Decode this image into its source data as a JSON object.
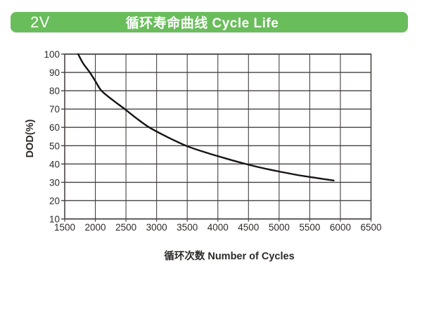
{
  "header": {
    "badge": "2V",
    "title": "循环寿命曲线 Cycle Life"
  },
  "chart_data": {
    "type": "line",
    "title": "循环寿命曲线 Cycle Life",
    "xlabel": "循环次数 Number of Cycles",
    "ylabel": "DOD(%)",
    "xlim": [
      1500,
      6500
    ],
    "ylim": [
      10,
      100
    ],
    "x_ticks": [
      1500,
      2000,
      2500,
      3000,
      3500,
      4000,
      4500,
      5000,
      5500,
      6000,
      6500
    ],
    "y_ticks": [
      10,
      20,
      30,
      40,
      50,
      60,
      70,
      80,
      90,
      100
    ],
    "grid": true,
    "legend_position": "none",
    "series": [
      {
        "name": "cycle-life",
        "points": [
          [
            1720,
            100
          ],
          [
            1800,
            95
          ],
          [
            1910,
            90
          ],
          [
            2005,
            85
          ],
          [
            2100,
            80
          ],
          [
            2280,
            75
          ],
          [
            2480,
            70
          ],
          [
            2670,
            65
          ],
          [
            2880,
            60
          ],
          [
            3160,
            55
          ],
          [
            3480,
            50
          ],
          [
            3800,
            46.3
          ],
          [
            4100,
            43.3
          ],
          [
            4400,
            40.5
          ],
          [
            4700,
            38
          ],
          [
            5000,
            35.9
          ],
          [
            5300,
            34
          ],
          [
            5600,
            32.4
          ],
          [
            5890,
            31
          ]
        ]
      }
    ]
  },
  "colors": {
    "header_green": "#69bd5b",
    "grid": "#474140",
    "curve": "#161313",
    "text": "#2e2a29",
    "background": "#ffffff"
  }
}
